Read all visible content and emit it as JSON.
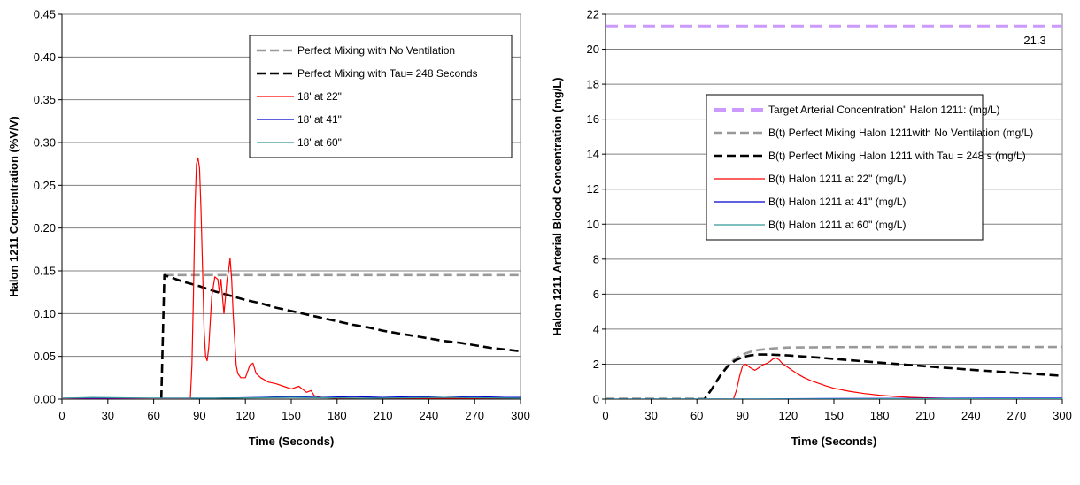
{
  "chart_data": [
    {
      "type": "line",
      "xlabel": "Time (Seconds)",
      "ylabel": "Halon 1211 Concentration  (%V/V)",
      "xlim": [
        0,
        300
      ],
      "ylim": [
        0,
        0.45
      ],
      "xticks": [
        0,
        30,
        60,
        90,
        120,
        150,
        180,
        210,
        240,
        270,
        300
      ],
      "xtick_labels": [
        "0",
        "30",
        "60",
        "90",
        "120",
        "150",
        "180",
        "210",
        "240",
        "270",
        "300"
      ],
      "yticks": [
        0,
        0.05,
        0.1,
        0.15,
        0.2,
        0.25,
        0.3,
        0.35,
        0.4,
        0.45
      ],
      "ytick_labels": [
        "0.00",
        "0.05",
        "0.10",
        "0.15",
        "0.20",
        "0.25",
        "0.30",
        "0.35",
        "0.40",
        "0.45"
      ],
      "grid": "horizontal",
      "legend_position": "top-right",
      "series": [
        {
          "name": "Perfect Mixing with No Ventilation",
          "color": "#999999",
          "style": "dashed",
          "x": [
            67,
            300
          ],
          "y": [
            0.145,
            0.145
          ]
        },
        {
          "name": "Perfect Mixing with Tau= 248 Seconds",
          "color": "#000000",
          "style": "dashed",
          "x": [
            65,
            67,
            70,
            80,
            90,
            100,
            110,
            120,
            130,
            140,
            150,
            160,
            170,
            180,
            190,
            200,
            210,
            220,
            230,
            240,
            250,
            260,
            270,
            280,
            290,
            300
          ],
          "y": [
            0,
            0.145,
            0.143,
            0.137,
            0.132,
            0.126,
            0.121,
            0.116,
            0.112,
            0.107,
            0.103,
            0.099,
            0.095,
            0.091,
            0.087,
            0.084,
            0.08,
            0.077,
            0.074,
            0.071,
            0.068,
            0.066,
            0.063,
            0.06,
            0.058,
            0.056
          ]
        },
        {
          "name": "18' at 22\"",
          "color": "#ff0000",
          "style": "solid",
          "x": [
            0,
            84,
            85,
            86,
            87,
            88,
            89,
            90,
            91,
            92,
            93,
            94,
            95,
            96,
            97,
            98,
            100,
            102,
            103,
            104,
            105,
            106,
            107,
            108,
            109,
            110,
            111,
            112,
            113,
            114,
            115,
            117,
            120,
            123,
            125,
            127,
            130,
            135,
            140,
            145,
            150,
            155,
            160,
            163,
            165,
            170,
            180,
            200,
            230,
            260,
            300
          ],
          "y": [
            0,
            0,
            0.04,
            0.12,
            0.22,
            0.275,
            0.282,
            0.27,
            0.22,
            0.15,
            0.08,
            0.05,
            0.045,
            0.06,
            0.09,
            0.12,
            0.143,
            0.14,
            0.125,
            0.14,
            0.12,
            0.1,
            0.12,
            0.14,
            0.15,
            0.165,
            0.14,
            0.1,
            0.07,
            0.04,
            0.03,
            0.025,
            0.025,
            0.04,
            0.042,
            0.03,
            0.025,
            0.02,
            0.018,
            0.015,
            0.012,
            0.015,
            0.008,
            0.01,
            0.004,
            0.002,
            0.001,
            0.001,
            0.001,
            0.001,
            0.001
          ]
        },
        {
          "name": "18' at 41\"",
          "color": "#0000cc",
          "style": "solid",
          "x": [
            0,
            60,
            100,
            130,
            150,
            170,
            190,
            210,
            230,
            250,
            270,
            290,
            300
          ],
          "y": [
            0.001,
            0.001,
            0.001,
            0.002,
            0.003,
            0.002,
            0.003,
            0.002,
            0.003,
            0.002,
            0.003,
            0.002,
            0.002
          ]
        },
        {
          "name": "18' at 60\"",
          "color": "#339999",
          "style": "solid",
          "x": [
            0,
            20,
            60,
            100,
            150,
            200,
            250,
            300
          ],
          "y": [
            0.001,
            0.002,
            0.001,
            0.001,
            0.002,
            0.001,
            0.002,
            0.001
          ]
        }
      ]
    },
    {
      "type": "line",
      "xlabel": "Time (Seconds)",
      "ylabel": "Halon 1211 Arterial Blood Concentration  (mg/L)",
      "xlim": [
        0,
        300
      ],
      "ylim": [
        0,
        22
      ],
      "xticks": [
        0,
        30,
        60,
        90,
        120,
        150,
        180,
        210,
        240,
        270,
        300
      ],
      "xtick_labels": [
        "0",
        "30",
        "60",
        "90",
        "120",
        "150",
        "180",
        "210",
        "240",
        "270",
        "300"
      ],
      "yticks": [
        0,
        2,
        4,
        6,
        8,
        10,
        12,
        14,
        16,
        18,
        20,
        22
      ],
      "ytick_labels": [
        "0",
        "2",
        "4",
        "6",
        "8",
        "10",
        "12",
        "14",
        "16",
        "18",
        "20",
        "22"
      ],
      "grid": "horizontal",
      "legend_position": "center-right",
      "annotation": {
        "text": "21.3",
        "x": 282,
        "y": 21.3
      },
      "series": [
        {
          "name": "Target Arterial Concentration\" Halon 1211: (mg/L)",
          "color": "#cc99ff",
          "style": "dashed",
          "x": [
            0,
            300
          ],
          "y": [
            21.3,
            21.3
          ]
        },
        {
          "name": "B(t)  Perfect Mixing Halon 1211with No Ventilation (mg/L)",
          "color": "#999999",
          "style": "dashed",
          "x": [
            0,
            65,
            70,
            75,
            80,
            85,
            90,
            95,
            100,
            105,
            110,
            120,
            150,
            180,
            210,
            240,
            270,
            300
          ],
          "y": [
            0,
            0,
            0.6,
            1.3,
            1.9,
            2.3,
            2.55,
            2.7,
            2.8,
            2.85,
            2.9,
            2.95,
            2.97,
            2.98,
            2.98,
            2.98,
            2.98,
            2.98
          ]
        },
        {
          "name": "B(t)  Perfect Mixing Halon 1211 with Tau = 248 s  (mg/L)",
          "color": "#000000",
          "style": "dashed",
          "x": [
            0,
            65,
            70,
            75,
            80,
            85,
            90,
            95,
            100,
            105,
            110,
            120,
            130,
            140,
            150,
            160,
            170,
            180,
            190,
            200,
            210,
            220,
            230,
            240,
            250,
            260,
            270,
            280,
            290,
            300
          ],
          "y": [
            0,
            0,
            0.6,
            1.3,
            1.85,
            2.2,
            2.4,
            2.5,
            2.55,
            2.55,
            2.54,
            2.5,
            2.44,
            2.37,
            2.3,
            2.23,
            2.16,
            2.09,
            2.02,
            1.95,
            1.88,
            1.81,
            1.75,
            1.68,
            1.62,
            1.56,
            1.5,
            1.45,
            1.39,
            1.33
          ]
        },
        {
          "name": "B(t) Halon 1211 at 22\"  (mg/L)",
          "color": "#ff0000",
          "style": "solid",
          "x": [
            0,
            84,
            86,
            88,
            90,
            92,
            95,
            98,
            100,
            103,
            106,
            108,
            110,
            112,
            114,
            116,
            120,
            125,
            130,
            135,
            140,
            145,
            150,
            160,
            170,
            180,
            190,
            200,
            210,
            220,
            230
          ],
          "y": [
            0,
            0,
            0.5,
            1.3,
            1.9,
            2.0,
            1.8,
            1.65,
            1.75,
            1.95,
            2.05,
            2.15,
            2.3,
            2.35,
            2.25,
            2.05,
            1.8,
            1.5,
            1.25,
            1.05,
            0.9,
            0.75,
            0.62,
            0.45,
            0.32,
            0.22,
            0.15,
            0.1,
            0.07,
            0.05,
            0.04
          ]
        },
        {
          "name": "B(t) Halon 1211 at 41\"  (mg/L)",
          "color": "#0000cc",
          "style": "solid",
          "x": [
            0,
            100,
            150,
            200,
            250,
            300
          ],
          "y": [
            0,
            0.01,
            0.03,
            0.04,
            0.05,
            0.05
          ]
        },
        {
          "name": "B(t) Halon 1211 at 60\"  (mg/L)",
          "color": "#339999",
          "style": "solid",
          "x": [
            0,
            100,
            150,
            200,
            250,
            300
          ],
          "y": [
            0,
            0.01,
            0.01,
            0.02,
            0.02,
            0.02
          ]
        }
      ]
    }
  ]
}
